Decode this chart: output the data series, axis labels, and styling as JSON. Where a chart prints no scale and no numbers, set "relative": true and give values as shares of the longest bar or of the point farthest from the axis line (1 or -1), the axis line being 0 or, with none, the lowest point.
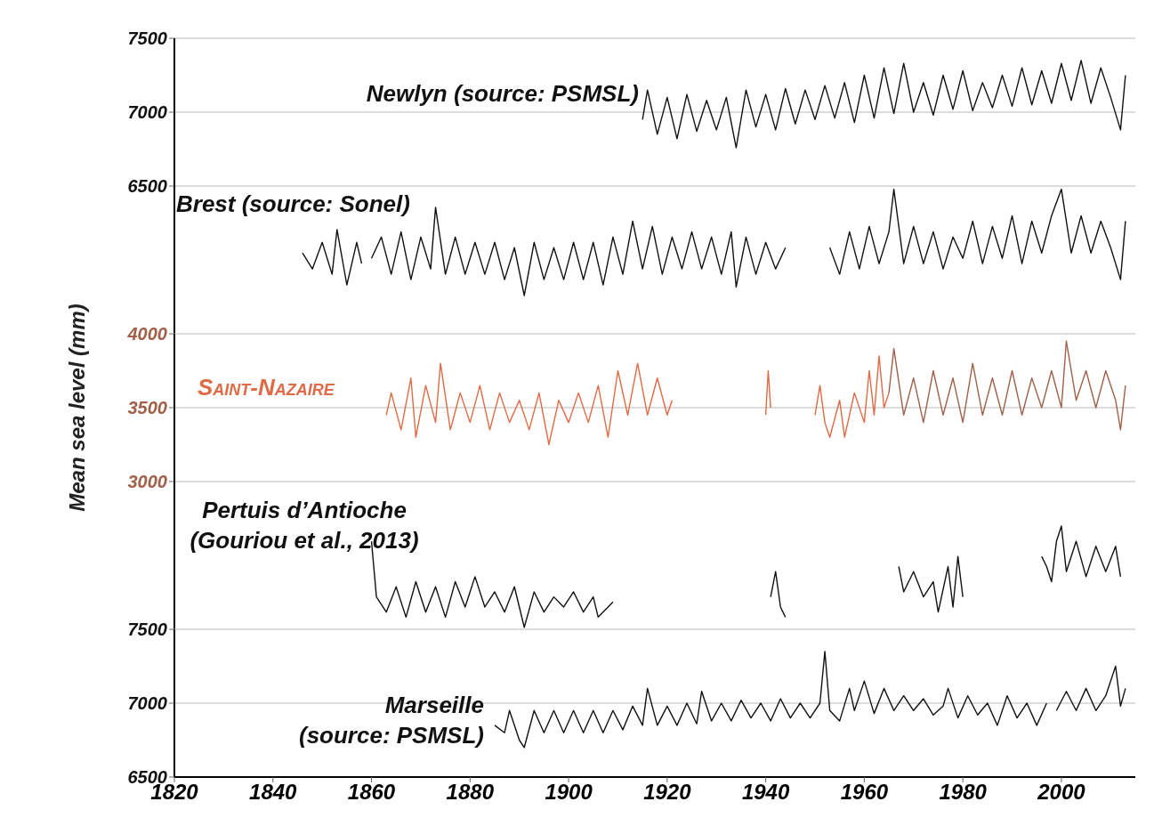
{
  "chart_data": [
    {
      "type": "line",
      "xlim": [
        1820,
        2015
      ],
      "xticks": [
        1820,
        1840,
        1860,
        1880,
        1900,
        1920,
        1940,
        1960,
        1980,
        2000
      ],
      "ylim": [
        6500,
        7500
      ],
      "yticks": [
        6500,
        7000,
        7500
      ],
      "grid": "y",
      "tick_labels": "y",
      "series": [
        {
          "name": "Newlyn (source: PSMSL)",
          "color": "#111111",
          "x": [
            1915,
            1916,
            1918,
            1920,
            1922,
            1924,
            1926,
            1928,
            1930,
            1932,
            1934,
            1936,
            1938,
            1940,
            1942,
            1944,
            1946,
            1948,
            1950,
            1952,
            1954,
            1956,
            1958,
            1960,
            1962,
            1964,
            1966,
            1968,
            1970,
            1972,
            1974,
            1976,
            1978,
            1980,
            1982,
            1984,
            1986,
            1988,
            1990,
            1992,
            1994,
            1996,
            1998,
            2000,
            2002,
            2004,
            2006,
            2008,
            2010,
            2012,
            2013
          ],
          "values": [
            6950,
            7150,
            6850,
            7100,
            6820,
            7120,
            6870,
            7080,
            6880,
            7100,
            6760,
            7150,
            6900,
            7120,
            6880,
            7160,
            6920,
            7150,
            6950,
            7180,
            6960,
            7200,
            6930,
            7250,
            6960,
            7300,
            6990,
            7330,
            7000,
            7200,
            6980,
            7250,
            7020,
            7280,
            7010,
            7200,
            7030,
            7250,
            7040,
            7300,
            7050,
            7280,
            7060,
            7330,
            7080,
            7350,
            7060,
            7300,
            7100,
            6880,
            7250
          ]
        }
      ]
    },
    {
      "type": "line",
      "relative": true,
      "xlim": [
        1820,
        2015
      ],
      "xticks": [
        1820,
        1840,
        1860,
        1880,
        1900,
        1920,
        1940,
        1960,
        1980,
        2000
      ],
      "tick_labels": false,
      "series": [
        {
          "name": "Brest (source: Sonel)",
          "color": "#111111",
          "x": [
            1846,
            1848,
            1850,
            1852,
            1853,
            1855,
            1857,
            1858,
            1859,
            1860,
            1862,
            1864,
            1866,
            1868,
            1870,
            1872,
            1873,
            1875,
            1877,
            1879,
            1881,
            1883,
            1885,
            1887,
            1889,
            1891,
            1893,
            1895,
            1897,
            1899,
            1901,
            1903,
            1905,
            1907,
            1909,
            1911,
            1913,
            1915,
            1917,
            1919,
            1921,
            1923,
            1925,
            1927,
            1929,
            1931,
            1933,
            1934,
            1936,
            1938,
            1940,
            1942,
            1944,
            1948,
            1953,
            1955,
            1957,
            1959,
            1961,
            1963,
            1965,
            1966,
            1968,
            1970,
            1972,
            1974,
            1976,
            1978,
            1980,
            1982,
            1984,
            1986,
            1988,
            1990,
            1992,
            1994,
            1996,
            1998,
            2000,
            2002,
            2004,
            2006,
            2008,
            2010,
            2012,
            2013
          ],
          "values": [
            0.4,
            0.25,
            0.5,
            0.2,
            0.62,
            0.1,
            0.5,
            0.3,
            null,
            0.35,
            0.55,
            0.2,
            0.6,
            0.15,
            0.55,
            0.25,
            0.83,
            0.2,
            0.55,
            0.2,
            0.5,
            0.2,
            0.5,
            0.15,
            0.45,
            0,
            0.5,
            0.15,
            0.45,
            0.15,
            0.5,
            0.15,
            0.5,
            0.1,
            0.55,
            0.2,
            0.7,
            0.25,
            0.65,
            0.2,
            0.55,
            0.25,
            0.6,
            0.25,
            0.55,
            0.2,
            0.6,
            0.08,
            0.55,
            0.2,
            0.5,
            0.25,
            0.45,
            null,
            0.45,
            0.2,
            0.6,
            0.25,
            0.65,
            0.3,
            0.6,
            1,
            0.3,
            0.65,
            0.3,
            0.6,
            0.25,
            0.55,
            0.35,
            0.7,
            0.3,
            0.65,
            0.35,
            0.75,
            0.3,
            0.7,
            0.4,
            0.75,
            1,
            0.4,
            0.75,
            0.4,
            0.7,
            0.45,
            0.15,
            0.7
          ]
        }
      ]
    },
    {
      "type": "line",
      "xlim": [
        1820,
        2015
      ],
      "xticks": [
        1820,
        1840,
        1860,
        1880,
        1900,
        1920,
        1940,
        1960,
        1980,
        2000
      ],
      "ylim": [
        3000,
        4000
      ],
      "yticks": [
        3000,
        3500,
        4000
      ],
      "grid": "y",
      "tick_labels": "y",
      "ylabel": "Mean sea level (mm)",
      "series": [
        {
          "name": "Saint-Nazaire",
          "color": "#e06a45",
          "x": [
            1863,
            1864,
            1866,
            1868,
            1869,
            1871,
            1873,
            1874,
            1876,
            1878,
            1880,
            1882,
            1884,
            1886,
            1888,
            1890,
            1892,
            1894,
            1896,
            1898,
            1900,
            1902,
            1904,
            1906,
            1908,
            1910,
            1912,
            1914,
            1916,
            1918,
            1920,
            1921,
            1930,
            1940,
            1940.5,
            1941,
            1945,
            1950,
            1951,
            1952,
            1953,
            1955,
            1956,
            1958,
            1960,
            1961,
            1962,
            1963,
            1964,
            1965
          ],
          "values": [
            3450,
            3600,
            3350,
            3700,
            3300,
            3650,
            3400,
            3800,
            3350,
            3600,
            3400,
            3650,
            3350,
            3600,
            3400,
            3550,
            3350,
            3600,
            3250,
            3550,
            3400,
            3600,
            3400,
            3650,
            3300,
            3750,
            3450,
            3800,
            3450,
            3700,
            3450,
            3550,
            null,
            3450,
            3750,
            3500,
            null,
            3450,
            3650,
            3400,
            3300,
            3550,
            3300,
            3600,
            3400,
            3750,
            3450,
            3850,
            3500,
            3600
          ]
        },
        {
          "color": "#a0604a",
          "x": [
            1965,
            1966,
            1968,
            1970,
            1972,
            1974,
            1976,
            1978,
            1980,
            1982,
            1984,
            1986,
            1988,
            1990,
            1992,
            1994,
            1996,
            1998,
            2000,
            2001,
            2003,
            2005,
            2007,
            2009,
            2011,
            2012,
            2013
          ],
          "values": [
            3600,
            3900,
            3450,
            3700,
            3400,
            3750,
            3450,
            3700,
            3400,
            3800,
            3450,
            3700,
            3450,
            3750,
            3450,
            3700,
            3500,
            3750,
            3500,
            3950,
            3550,
            3750,
            3500,
            3750,
            3550,
            3350,
            3650
          ]
        }
      ]
    },
    {
      "type": "line",
      "relative": true,
      "xlim": [
        1820,
        2015
      ],
      "xticks": [
        1820,
        1840,
        1860,
        1880,
        1900,
        1920,
        1940,
        1960,
        1980,
        2000
      ],
      "tick_labels": false,
      "series": [
        {
          "name": "Pertuis d’Antioche (Gouriou et al., 2013)",
          "color": "#111111",
          "x": [
            1860,
            1861,
            1863,
            1865,
            1867,
            1869,
            1871,
            1873,
            1875,
            1877,
            1879,
            1881,
            1883,
            1885,
            1887,
            1889,
            1891,
            1893,
            1895,
            1897,
            1899,
            1901,
            1903,
            1905,
            1906,
            1908,
            1909,
            1920,
            1941,
            1942,
            1943,
            1944,
            1950,
            1967,
            1968,
            1970,
            1972,
            1974,
            1975,
            1977,
            1978,
            1979,
            1980,
            1990,
            1996,
            1997,
            1998,
            1999,
            2000,
            2001,
            2003,
            2005,
            2007,
            2009,
            2011,
            2012
          ],
          "values": [
            0.85,
            0.3,
            0.15,
            0.4,
            0.1,
            0.45,
            0.15,
            0.4,
            0.1,
            0.45,
            0.2,
            0.5,
            0.2,
            0.35,
            0.15,
            0.4,
            0,
            0.35,
            0.15,
            0.3,
            0.2,
            0.35,
            0.15,
            0.3,
            0.1,
            0.2,
            0.25,
            null,
            0.3,
            0.55,
            0.2,
            0.1,
            null,
            0.6,
            0.35,
            0.55,
            0.3,
            0.45,
            0.15,
            0.6,
            0.2,
            0.7,
            0.3,
            null,
            0.7,
            0.6,
            0.45,
            0.85,
            1,
            0.55,
            0.85,
            0.5,
            0.8,
            0.55,
            0.8,
            0.5
          ]
        }
      ]
    },
    {
      "type": "line",
      "xlim": [
        1820,
        2015
      ],
      "xticks": [
        1820,
        1840,
        1860,
        1880,
        1900,
        1920,
        1940,
        1960,
        1980,
        2000
      ],
      "ylim": [
        6500,
        7500
      ],
      "yticks": [
        6500,
        7000,
        7500
      ],
      "grid": "y",
      "series": [
        {
          "name": "Marseille (source: PSMSL)",
          "color": "#111111",
          "x": [
            1885,
            1887,
            1888,
            1890,
            1891,
            1893,
            1895,
            1897,
            1899,
            1901,
            1903,
            1905,
            1907,
            1909,
            1911,
            1913,
            1915,
            1916,
            1918,
            1920,
            1922,
            1924,
            1926,
            1927,
            1929,
            1931,
            1933,
            1935,
            1937,
            1939,
            1941,
            1943,
            1945,
            1947,
            1949,
            1951,
            1952,
            1953,
            1955,
            1957,
            1958,
            1960,
            1962,
            1964,
            1966,
            1968,
            1970,
            1972,
            1974,
            1976,
            1977,
            1979,
            1981,
            1983,
            1985,
            1987,
            1989,
            1991,
            1993,
            1995,
            1997,
            1998,
            1999,
            2001,
            2003,
            2005,
            2007,
            2009,
            2011,
            2012,
            2013
          ],
          "values": [
            6850,
            6800,
            6950,
            6750,
            6700,
            6950,
            6800,
            6950,
            6800,
            6950,
            6800,
            6950,
            6800,
            6950,
            6820,
            6980,
            6850,
            7100,
            6850,
            6980,
            6850,
            7000,
            6860,
            7080,
            6880,
            7000,
            6880,
            7020,
            6900,
            7000,
            6880,
            7030,
            6900,
            7000,
            6900,
            7000,
            7350,
            6950,
            6880,
            7100,
            6950,
            7150,
            6930,
            7100,
            6950,
            7050,
            6950,
            7030,
            6920,
            6980,
            7100,
            6900,
            7050,
            6920,
            7000,
            6850,
            7050,
            6900,
            7000,
            6850,
            7000,
            null,
            6950,
            7080,
            6950,
            7100,
            6950,
            7050,
            7250,
            6980,
            7100
          ]
        }
      ]
    }
  ]
}
